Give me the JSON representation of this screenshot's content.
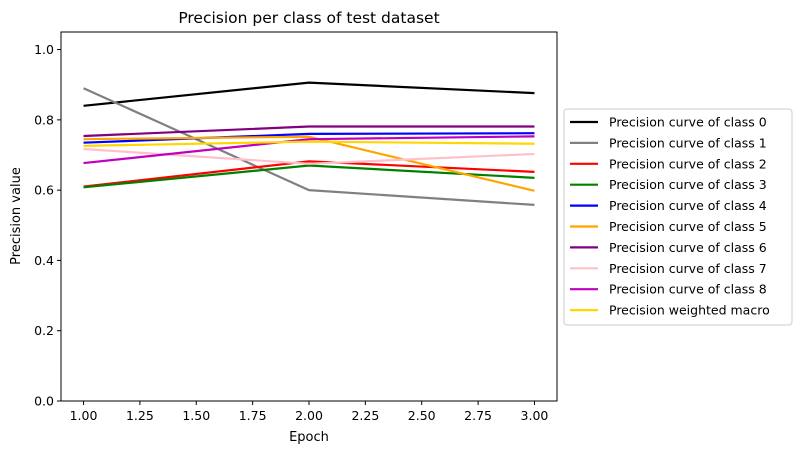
{
  "chart_data": {
    "type": "line",
    "title": "Precision per class of test dataset",
    "xlabel": "Epoch",
    "ylabel": "Precision value",
    "x": [
      1,
      2,
      3
    ],
    "xlim": [
      0.9,
      3.1
    ],
    "ylim": [
      0.0,
      1.05
    ],
    "xticks": [
      "1.00",
      "1.25",
      "1.50",
      "1.75",
      "2.00",
      "2.25",
      "2.50",
      "2.75",
      "3.00"
    ],
    "yticks": [
      "0.0",
      "0.2",
      "0.4",
      "0.6",
      "0.8",
      "1.0"
    ],
    "grid": false,
    "legend_position": "center-right-outside",
    "series": [
      {
        "name": "Precision curve of class 0",
        "color": "#000000",
        "values": [
          0.84,
          0.906,
          0.876
        ]
      },
      {
        "name": "Precision curve of class 1",
        "color": "#808080",
        "values": [
          0.89,
          0.6,
          0.558
        ]
      },
      {
        "name": "Precision curve of class 2",
        "color": "#ff0000",
        "values": [
          0.61,
          0.682,
          0.652
        ]
      },
      {
        "name": "Precision curve of class 3",
        "color": "#008000",
        "values": [
          0.608,
          0.67,
          0.635
        ]
      },
      {
        "name": "Precision curve of class 4",
        "color": "#0000ff",
        "values": [
          0.735,
          0.76,
          0.762
        ]
      },
      {
        "name": "Precision curve of class 5",
        "color": "#ffa500",
        "values": [
          0.745,
          0.752,
          0.598
        ]
      },
      {
        "name": "Precision curve of class 6",
        "color": "#800080",
        "values": [
          0.754,
          0.781,
          0.781
        ]
      },
      {
        "name": "Precision curve of class 7",
        "color": "#ffc0cb",
        "values": [
          0.717,
          0.675,
          0.703
        ]
      },
      {
        "name": "Precision curve of class 8",
        "color": "#bf00bf",
        "values": [
          0.677,
          0.745,
          0.753
        ]
      },
      {
        "name": "Precision weighted macro",
        "color": "#ffd700",
        "values": [
          0.726,
          0.738,
          0.732
        ]
      }
    ]
  }
}
